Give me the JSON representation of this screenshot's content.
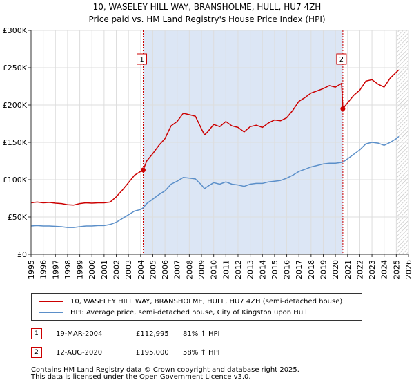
{
  "title_line1": "10, WASELEY HILL WAY, BRANSHOLME, HULL, HU7 4ZH",
  "title_line2": "Price paid vs. HM Land Registry's House Price Index (HPI)",
  "legend": {
    "property_label": "10, WASELEY HILL WAY, BRANSHOLME, HULL, HU7 4ZH (semi-detached house)",
    "hpi_label": "HPI: Average price, semi-detached house, City of Kingston upon Hull"
  },
  "transactions": [
    {
      "num": "1",
      "date": "19-MAR-2004",
      "price": "£112,995",
      "hpi": "81% ↑ HPI"
    },
    {
      "num": "2",
      "date": "12-AUG-2020",
      "price": "£195,000",
      "hpi": "58% ↑ HPI"
    }
  ],
  "footer_line1": "Contains HM Land Registry data © Crown copyright and database right 2025.",
  "footer_line2": "This data is licensed under the Open Government Licence v3.0.",
  "colors": {
    "property": "#cc0000",
    "hpi": "#5b8fc9",
    "shade": "#dce6f5",
    "grid": "#dddddd"
  },
  "chart_data": {
    "type": "line",
    "x_range": [
      1995,
      2026
    ],
    "ylim": [
      0,
      300000
    ],
    "y_ticks": [
      {
        "v": 0,
        "label": "£0"
      },
      {
        "v": 50000,
        "label": "£50K"
      },
      {
        "v": 100000,
        "label": "£100K"
      },
      {
        "v": 150000,
        "label": "£150K"
      },
      {
        "v": 200000,
        "label": "£200K"
      },
      {
        "v": 250000,
        "label": "£250K"
      },
      {
        "v": 300000,
        "label": "£300K"
      }
    ],
    "x_ticks": [
      "1995",
      "1996",
      "1997",
      "1998",
      "1999",
      "2000",
      "2001",
      "2002",
      "2003",
      "2004",
      "2005",
      "2006",
      "2007",
      "2008",
      "2009",
      "2010",
      "2011",
      "2012",
      "2013",
      "2014",
      "2015",
      "2016",
      "2017",
      "2018",
      "2019",
      "2020",
      "2021",
      "2022",
      "2023",
      "2024",
      "2025",
      "2026"
    ],
    "shaded_range": [
      2004.21,
      2020.61
    ],
    "hatched_from": 2025.0,
    "markers": [
      {
        "label": "1",
        "x": 2004.21,
        "y": 112995
      },
      {
        "label": "2",
        "x": 2020.61,
        "y": 195000
      }
    ],
    "series": [
      {
        "name": "10, WASELEY HILL WAY, BRANSHOLME, HULL, HU7 4ZH (semi-detached house)",
        "points": [
          [
            1995.0,
            69000
          ],
          [
            1995.5,
            70000
          ],
          [
            1996.0,
            69000
          ],
          [
            1996.5,
            69500
          ],
          [
            1997.0,
            68500
          ],
          [
            1997.5,
            68000
          ],
          [
            1998.0,
            66500
          ],
          [
            1998.5,
            66000
          ],
          [
            1999.0,
            68000
          ],
          [
            1999.5,
            69000
          ],
          [
            2000.0,
            68500
          ],
          [
            2000.5,
            69000
          ],
          [
            2001.0,
            69000
          ],
          [
            2001.5,
            70000
          ],
          [
            2002.0,
            77000
          ],
          [
            2002.5,
            86000
          ],
          [
            2003.0,
            96000
          ],
          [
            2003.5,
            106000
          ],
          [
            2004.0,
            111000
          ],
          [
            2004.21,
            112995
          ],
          [
            2004.5,
            125000
          ],
          [
            2005.0,
            135000
          ],
          [
            2005.5,
            146000
          ],
          [
            2006.0,
            155000
          ],
          [
            2006.5,
            172000
          ],
          [
            2007.0,
            178000
          ],
          [
            2007.5,
            189000
          ],
          [
            2008.0,
            187000
          ],
          [
            2008.5,
            185000
          ],
          [
            2009.0,
            168000
          ],
          [
            2009.25,
            160000
          ],
          [
            2009.5,
            164000
          ],
          [
            2010.0,
            174000
          ],
          [
            2010.5,
            171000
          ],
          [
            2011.0,
            178000
          ],
          [
            2011.5,
            172000
          ],
          [
            2012.0,
            170000
          ],
          [
            2012.5,
            164000
          ],
          [
            2013.0,
            171000
          ],
          [
            2013.5,
            173000
          ],
          [
            2014.0,
            170000
          ],
          [
            2014.5,
            176000
          ],
          [
            2015.0,
            180000
          ],
          [
            2015.5,
            179000
          ],
          [
            2016.0,
            183000
          ],
          [
            2016.5,
            193000
          ],
          [
            2017.0,
            205000
          ],
          [
            2017.5,
            210000
          ],
          [
            2018.0,
            216000
          ],
          [
            2018.5,
            219000
          ],
          [
            2019.0,
            222000
          ],
          [
            2019.5,
            226000
          ],
          [
            2020.0,
            224000
          ],
          [
            2020.5,
            229000
          ],
          [
            2020.6,
            200000
          ],
          [
            2020.61,
            195000
          ],
          [
            2021.0,
            203000
          ],
          [
            2021.5,
            213000
          ],
          [
            2022.0,
            220000
          ],
          [
            2022.5,
            232000
          ],
          [
            2023.0,
            234000
          ],
          [
            2023.5,
            228000
          ],
          [
            2024.0,
            224000
          ],
          [
            2024.5,
            236000
          ],
          [
            2025.0,
            244000
          ],
          [
            2025.2,
            247000
          ]
        ]
      },
      {
        "name": "HPI: Average price, semi-detached house, City of Kingston upon Hull",
        "points": [
          [
            1995.0,
            38000
          ],
          [
            1995.5,
            38500
          ],
          [
            1996.0,
            38000
          ],
          [
            1996.5,
            38000
          ],
          [
            1997.0,
            37500
          ],
          [
            1997.5,
            37000
          ],
          [
            1998.0,
            36000
          ],
          [
            1998.5,
            36000
          ],
          [
            1999.0,
            37000
          ],
          [
            1999.5,
            38000
          ],
          [
            2000.0,
            38000
          ],
          [
            2000.5,
            38500
          ],
          [
            2001.0,
            38500
          ],
          [
            2001.5,
            40000
          ],
          [
            2002.0,
            43000
          ],
          [
            2002.5,
            48000
          ],
          [
            2003.0,
            53000
          ],
          [
            2003.5,
            58000
          ],
          [
            2004.0,
            60000
          ],
          [
            2004.21,
            62400
          ],
          [
            2004.5,
            68000
          ],
          [
            2005.0,
            74000
          ],
          [
            2005.5,
            80000
          ],
          [
            2006.0,
            85000
          ],
          [
            2006.5,
            94000
          ],
          [
            2007.0,
            98000
          ],
          [
            2007.5,
            103000
          ],
          [
            2008.0,
            102000
          ],
          [
            2008.5,
            101000
          ],
          [
            2009.0,
            93000
          ],
          [
            2009.25,
            88000
          ],
          [
            2009.5,
            91000
          ],
          [
            2010.0,
            96000
          ],
          [
            2010.5,
            94000
          ],
          [
            2011.0,
            97000
          ],
          [
            2011.5,
            94000
          ],
          [
            2012.0,
            93000
          ],
          [
            2012.5,
            91000
          ],
          [
            2013.0,
            94000
          ],
          [
            2013.5,
            95000
          ],
          [
            2014.0,
            95000
          ],
          [
            2014.5,
            97000
          ],
          [
            2015.0,
            98000
          ],
          [
            2015.5,
            99000
          ],
          [
            2016.0,
            102000
          ],
          [
            2016.5,
            106000
          ],
          [
            2017.0,
            111000
          ],
          [
            2017.5,
            114000
          ],
          [
            2018.0,
            117000
          ],
          [
            2018.5,
            119000
          ],
          [
            2019.0,
            121000
          ],
          [
            2019.5,
            122000
          ],
          [
            2020.0,
            122000
          ],
          [
            2020.61,
            123400
          ],
          [
            2021.0,
            128000
          ],
          [
            2021.5,
            134000
          ],
          [
            2022.0,
            140000
          ],
          [
            2022.5,
            148000
          ],
          [
            2023.0,
            150000
          ],
          [
            2023.5,
            149000
          ],
          [
            2024.0,
            146000
          ],
          [
            2024.5,
            150000
          ],
          [
            2025.0,
            155000
          ],
          [
            2025.2,
            158000
          ]
        ]
      }
    ]
  }
}
